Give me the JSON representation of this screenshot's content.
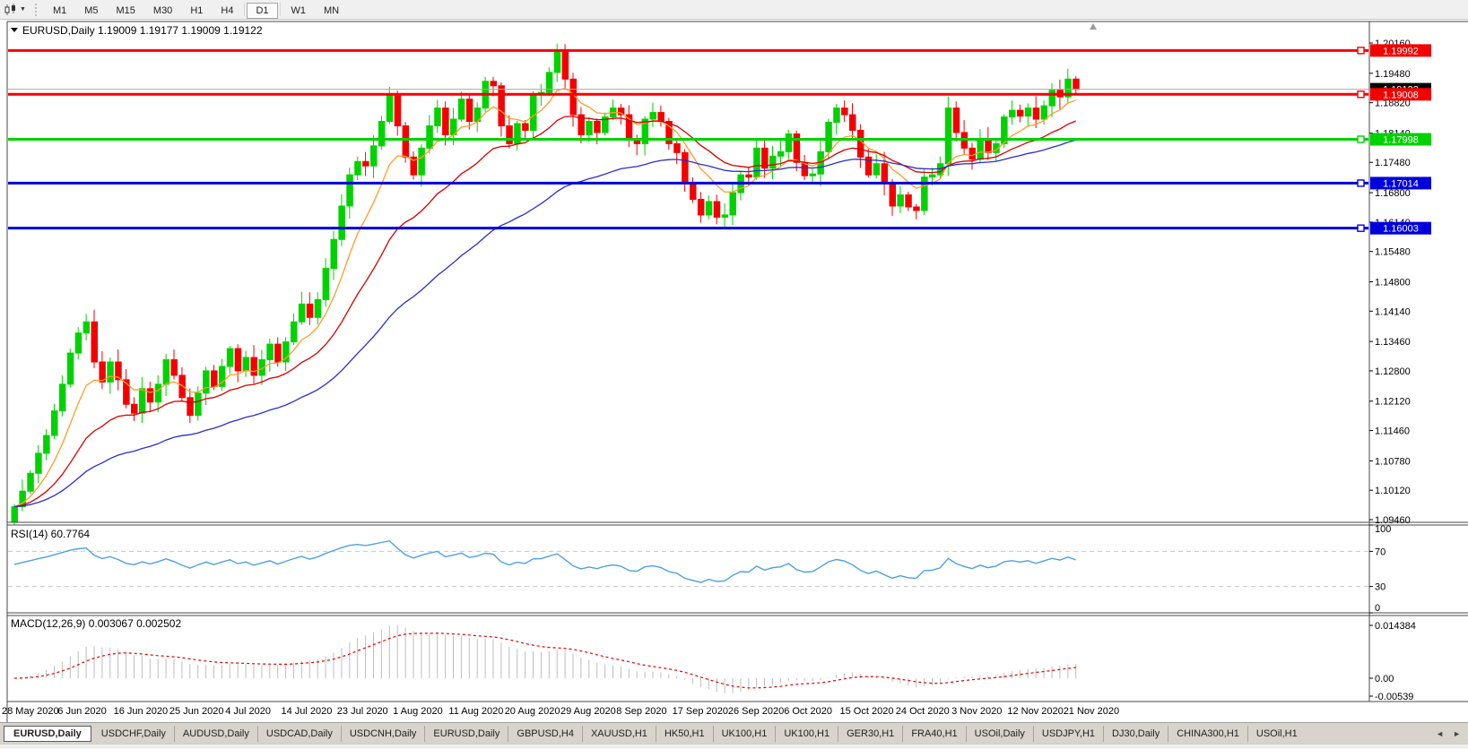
{
  "toolbar": {
    "chart_icon": "candlestick-chart-icon",
    "dropdown_icon": "chevron-down-icon",
    "timeframes": [
      {
        "label": "M1",
        "active": false
      },
      {
        "label": "M5",
        "active": false
      },
      {
        "label": "M15",
        "active": false
      },
      {
        "label": "M30",
        "active": false
      },
      {
        "label": "H1",
        "active": false
      },
      {
        "label": "H4",
        "active": false
      },
      {
        "label": "D1",
        "active": true
      },
      {
        "label": "W1",
        "active": false
      },
      {
        "label": "MN",
        "active": false
      }
    ]
  },
  "chart": {
    "title": {
      "symbol_label": "EURUSD,Daily",
      "open": "1.19009",
      "high": "1.19177",
      "low": "1.19009",
      "close": "1.19122"
    },
    "price_axis": {
      "ticks": [
        "1.20160",
        "1.19480",
        "1.18820",
        "1.18140",
        "1.17480",
        "1.16800",
        "1.16140",
        "1.15480",
        "1.14800",
        "1.14140",
        "1.13460",
        "1.12800",
        "1.12120",
        "1.11460",
        "1.10780",
        "1.10120",
        "1.09460"
      ]
    },
    "hlines": [
      {
        "price": 1.19992,
        "label": "1.19992",
        "color": "#f40000"
      },
      {
        "price": 1.19008,
        "label": "1.19008",
        "color": "#f40000"
      },
      {
        "price": 1.17998,
        "label": "1.17998",
        "color": "#00d200"
      },
      {
        "price": 1.17014,
        "label": "1.17014",
        "color": "#0000dc"
      },
      {
        "price": 1.16003,
        "label": "1.16003",
        "color": "#0000dc"
      }
    ],
    "current_price": {
      "value": 1.19122,
      "label": "1.19122",
      "line_color": "#a8a8a8",
      "badge_color": "#000000"
    }
  },
  "chart_data": {
    "type": "candlestick",
    "symbol": "EURUSD",
    "timeframe": "Daily",
    "ylim": [
      1.0946,
      1.2016
    ],
    "up_color": "#00d200",
    "down_color": "#f40000",
    "x_labels": [
      "28 May 2020",
      "6 Jun 2020",
      "16 Jun 2020",
      "25 Jun 2020",
      "4 Jul 2020",
      "14 Jul 2020",
      "23 Jul 2020",
      "1 Aug 2020",
      "11 Aug 2020",
      "20 Aug 2020",
      "29 Aug 2020",
      "8 Sep 2020",
      "17 Sep 2020",
      "26 Sep 2020",
      "6 Oct 2020",
      "15 Oct 2020",
      "24 Oct 2020",
      "3 Nov 2020",
      "12 Nov 2020",
      "21 Nov 2020"
    ],
    "x_label_every_n_candles": 7,
    "closes": [
      1.0975,
      1.101,
      1.105,
      1.1095,
      1.1135,
      1.119,
      1.125,
      1.132,
      1.1365,
      1.139,
      1.13,
      1.1255,
      1.13,
      1.126,
      1.1205,
      1.1185,
      1.124,
      1.121,
      1.125,
      1.1305,
      1.127,
      1.122,
      1.118,
      1.123,
      1.128,
      1.1245,
      1.129,
      1.133,
      1.128,
      1.131,
      1.127,
      1.1305,
      1.134,
      1.13,
      1.1345,
      1.139,
      1.143,
      1.14,
      1.144,
      1.151,
      1.1575,
      1.165,
      1.172,
      1.175,
      1.174,
      1.1785,
      1.184,
      1.19,
      1.183,
      1.176,
      1.172,
      1.178,
      1.183,
      1.187,
      1.181,
      1.1845,
      1.189,
      1.184,
      1.187,
      1.193,
      1.192,
      1.183,
      1.179,
      1.1835,
      1.182,
      1.19,
      1.1905,
      1.195,
      1.2,
      1.1935,
      1.1855,
      1.181,
      1.184,
      1.1815,
      1.185,
      1.187,
      1.1855,
      1.18,
      1.179,
      1.1845,
      1.186,
      1.184,
      1.179,
      1.177,
      1.17,
      1.1665,
      1.163,
      1.166,
      1.1625,
      1.163,
      1.168,
      1.172,
      1.1715,
      1.178,
      1.1735,
      1.1762,
      1.1772,
      1.1812,
      1.1748,
      1.1718,
      1.1722,
      1.1772,
      1.1838,
      1.187,
      1.1855,
      1.182,
      1.176,
      1.172,
      1.1745,
      1.17,
      1.165,
      1.1675,
      1.1648,
      1.164,
      1.1715,
      1.172,
      1.1745,
      1.187,
      1.1815,
      1.178,
      1.1755,
      1.18,
      1.177,
      1.179,
      1.185,
      1.1865,
      1.1852,
      1.187,
      1.1845,
      1.1875,
      1.191,
      1.1895,
      1.1935,
      1.1912
    ],
    "last_ohlc": {
      "open": 1.19009,
      "high": 1.19177,
      "low": 1.19009,
      "close": 1.19122
    },
    "moving_averages": [
      {
        "type": "ema",
        "period": 8,
        "color": "#ff9c2a"
      },
      {
        "type": "ema",
        "period": 20,
        "color": "#d40000"
      },
      {
        "type": "ema",
        "period": 45,
        "color": "#2c2cc8"
      }
    ],
    "indicators": [
      {
        "name": "RSI",
        "params": "14",
        "label": "RSI(14) 60.7764",
        "value": "60.7764",
        "range": [
          0,
          100
        ],
        "levels": [
          70,
          30
        ],
        "axis_labels": [
          "100",
          "70",
          "30",
          "0"
        ],
        "line_color": "#4da2e0",
        "level_color": "#c8c8c8"
      },
      {
        "name": "MACD",
        "params": "12,26,9",
        "label": "MACD(12,26,9) 0.003067 0.002502",
        "values": "0.003067 0.002502",
        "axis_labels": [
          "0.014384",
          "0.00",
          "-0.00539"
        ],
        "histogram_color": "#bdbdbd",
        "signal_color": "#e00000"
      }
    ]
  },
  "tabs": {
    "items": [
      {
        "label": "EURUSD,Daily",
        "active": true
      },
      {
        "label": "USDCHF,Daily",
        "active": false
      },
      {
        "label": "AUDUSD,Daily",
        "active": false
      },
      {
        "label": "USDCAD,Daily",
        "active": false
      },
      {
        "label": "USDCNH,Daily",
        "active": false
      },
      {
        "label": "EURUSD,Daily",
        "active": false
      },
      {
        "label": "GBPUSD,H4",
        "active": false
      },
      {
        "label": "XAUUSD,H1",
        "active": false
      },
      {
        "label": "HK50,H1",
        "active": false
      },
      {
        "label": "UK100,H1",
        "active": false
      },
      {
        "label": "UK100,H1",
        "active": false
      },
      {
        "label": "GER30,H1",
        "active": false
      },
      {
        "label": "FRA40,H1",
        "active": false
      },
      {
        "label": "USOil,Daily",
        "active": false
      },
      {
        "label": "USDJPY,H1",
        "active": false
      },
      {
        "label": "DJ30,Daily",
        "active": false
      },
      {
        "label": "CHINA300,H1",
        "active": false
      },
      {
        "label": "USOil,H1",
        "active": false
      }
    ],
    "scroll_left_icon": "◄",
    "scroll_right_icon": "►"
  }
}
